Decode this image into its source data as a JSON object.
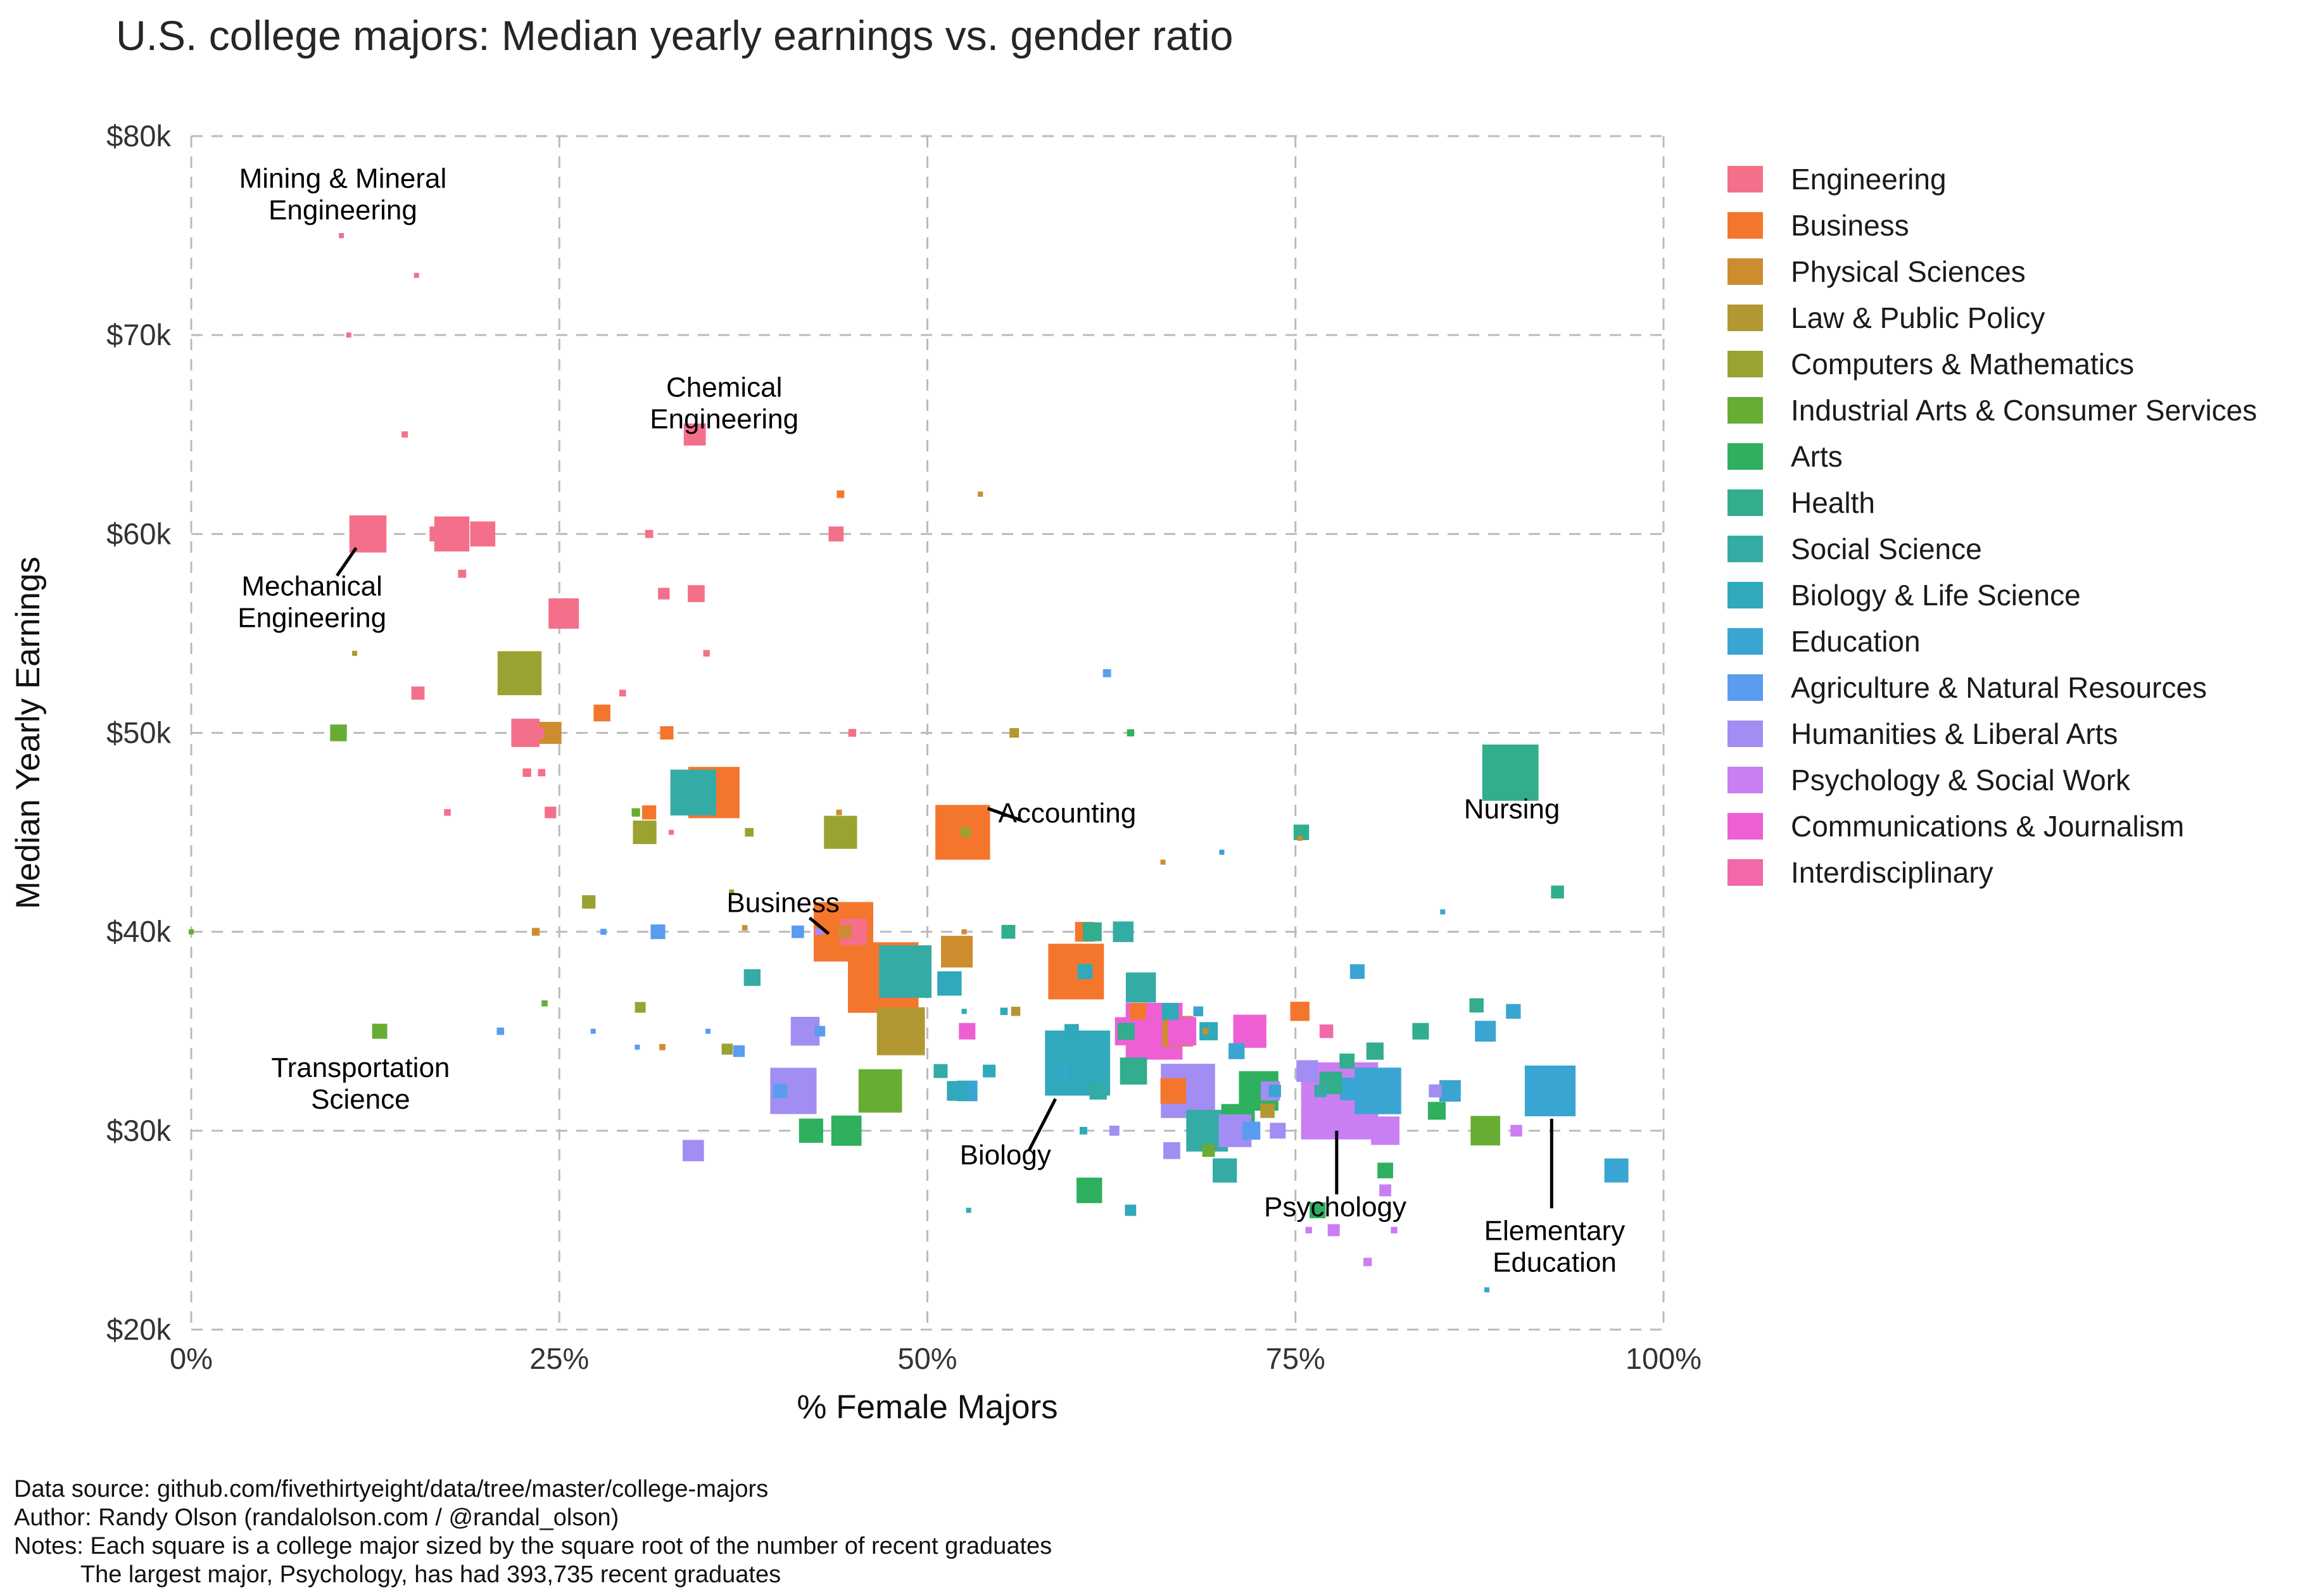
{
  "title": "U.S. college majors: Median yearly earnings vs. gender ratio",
  "axes": {
    "x_label": "% Female Majors",
    "y_label": "Median Yearly Earnings",
    "x_ticks": [
      {
        "v": 0,
        "label": "0%"
      },
      {
        "v": 25,
        "label": "25%"
      },
      {
        "v": 50,
        "label": "50%"
      },
      {
        "v": 75,
        "label": "75%"
      },
      {
        "v": 100,
        "label": "100%"
      }
    ],
    "y_ticks": [
      {
        "v": 20,
        "label": "$20k"
      },
      {
        "v": 30,
        "label": "$30k"
      },
      {
        "v": 40,
        "label": "$40k"
      },
      {
        "v": 50,
        "label": "$50k"
      },
      {
        "v": 60,
        "label": "$60k"
      },
      {
        "v": 70,
        "label": "$70k"
      },
      {
        "v": 80,
        "label": "$80k"
      }
    ],
    "x_range": [
      0,
      100
    ],
    "y_range": [
      20,
      80
    ],
    "grid": "dashed"
  },
  "legend": {
    "position": "right",
    "items": [
      {
        "label": "Engineering",
        "color": "#f4708a"
      },
      {
        "label": "Business",
        "color": "#f4762d"
      },
      {
        "label": "Physical Sciences",
        "color": "#cd8d2f"
      },
      {
        "label": "Law & Public Policy",
        "color": "#b29733"
      },
      {
        "label": "Computers & Mathematics",
        "color": "#9aa231"
      },
      {
        "label": "Industrial Arts & Consumer Services",
        "color": "#68ad33"
      },
      {
        "label": "Arts",
        "color": "#2eb05e"
      },
      {
        "label": "Health",
        "color": "#32ad8d"
      },
      {
        "label": "Social Science",
        "color": "#35aba6"
      },
      {
        "label": "Biology & Life Science",
        "color": "#2fa9bb"
      },
      {
        "label": "Education",
        "color": "#3aa5d2"
      },
      {
        "label": "Agriculture & Natural Resources",
        "color": "#5a9cf0"
      },
      {
        "label": "Humanities & Liberal Arts",
        "color": "#a28df2"
      },
      {
        "label": "Psychology & Social Work",
        "color": "#c97ef2"
      },
      {
        "label": "Communications & Journalism",
        "color": "#ee5fd4"
      },
      {
        "label": "Interdisciplinary",
        "color": "#f268a9"
      }
    ]
  },
  "chart_data": {
    "type": "scatter",
    "marker": "square",
    "size_rule": "square side proportional to sqrt(number of recent graduates); largest major Psychology = 393,735 graduates",
    "title": "U.S. college majors: Median yearly earnings vs. gender ratio",
    "xlabel": "% Female Majors",
    "ylabel": "Median Yearly Earnings",
    "xlim": [
      0,
      100
    ],
    "ylim": [
      20000,
      80000
    ],
    "categories": [
      "Engineering",
      "Business",
      "Physical Sciences",
      "Law & Public Policy",
      "Computers & Mathematics",
      "Industrial Arts & Consumer Services",
      "Arts",
      "Health",
      "Social Science",
      "Biology & Life Science",
      "Education",
      "Agriculture & Natural Resources",
      "Humanities & Liberal Arts",
      "Psychology & Social Work",
      "Communications & Journalism",
      "Interdisciplinary"
    ],
    "point_format": [
      "category_index",
      "pct_female",
      "median_earnings_k",
      "approx_graduates"
    ],
    "points": [
      [
        0,
        10.2,
        75,
        756
      ],
      [
        0,
        15.3,
        73,
        856
      ],
      [
        0,
        10.7,
        70,
        1258
      ],
      [
        0,
        34.2,
        65,
        32260
      ],
      [
        0,
        14.5,
        65,
        2573
      ],
      [
        0,
        12,
        60,
        91227
      ],
      [
        0,
        17.7,
        60,
        81527
      ],
      [
        0,
        19.8,
        60,
        41542
      ],
      [
        0,
        16.7,
        60,
        15058
      ],
      [
        0,
        43.8,
        60,
        14955
      ],
      [
        0,
        31.1,
        60,
        4279
      ],
      [
        0,
        18.4,
        58,
        4321
      ],
      [
        0,
        32.1,
        57,
        8925
      ],
      [
        0,
        34.3,
        57,
        18968
      ],
      [
        0,
        25.3,
        56,
        61152
      ],
      [
        0,
        35,
        54,
        2825
      ],
      [
        0,
        15.4,
        52,
        11565
      ],
      [
        0,
        29.3,
        52,
        2993
      ],
      [
        0,
        22.7,
        50,
        53153
      ],
      [
        0,
        23.6,
        50,
        8316
      ],
      [
        0,
        44.9,
        50,
        4047
      ],
      [
        0,
        23.8,
        48,
        3600
      ],
      [
        0,
        22.8,
        48,
        4790
      ],
      [
        0,
        17.4,
        46,
        2906
      ],
      [
        0,
        24.4,
        46,
        8804
      ],
      [
        0,
        32.6,
        45,
        720
      ],
      [
        0,
        45,
        40,
        46420
      ],
      [
        1,
        44.1,
        62,
        3777
      ],
      [
        1,
        27.9,
        51,
        18713
      ],
      [
        1,
        32.3,
        50,
        11732
      ],
      [
        1,
        35.5,
        47,
        174506
      ],
      [
        1,
        31.1,
        46,
        13302
      ],
      [
        1,
        52.4,
        45,
        198633
      ],
      [
        1,
        44.3,
        40,
        234590
      ],
      [
        1,
        60.7,
        40,
        25894
      ],
      [
        1,
        60.1,
        38,
        205211
      ],
      [
        1,
        47,
        37.7,
        329927
      ],
      [
        1,
        64.3,
        36,
        17947
      ],
      [
        1,
        75.3,
        36,
        24497
      ],
      [
        1,
        66.7,
        32,
        43647
      ],
      [
        2,
        53.6,
        62,
        1792
      ],
      [
        2,
        24.4,
        50,
        32142
      ],
      [
        2,
        44,
        46,
        2116
      ],
      [
        2,
        37.6,
        40.2,
        1978
      ],
      [
        2,
        23.4,
        40,
        4043
      ],
      [
        2,
        44.4,
        40,
        10972
      ],
      [
        2,
        52.5,
        40,
        1436
      ],
      [
        2,
        52,
        39,
        66530
      ],
      [
        2,
        67,
        35,
        62052
      ],
      [
        2,
        68.9,
        35,
        2418
      ],
      [
        2,
        75.3,
        44.7,
        900
      ],
      [
        2,
        66,
        43.5,
        900
      ],
      [
        2,
        32,
        34.2,
        2500
      ],
      [
        3,
        11.1,
        54,
        1148
      ],
      [
        3,
        55.9,
        50,
        5978
      ],
      [
        3,
        48.2,
        35,
        152824
      ],
      [
        3,
        56,
        36,
        5629
      ],
      [
        3,
        73.1,
        31,
        13528
      ],
      [
        4,
        22.3,
        53,
        128319
      ],
      [
        4,
        37.9,
        45,
        4939
      ],
      [
        4,
        44.1,
        45,
        72397
      ],
      [
        4,
        30.8,
        45,
        36698
      ],
      [
        4,
        52.6,
        45,
        6251
      ],
      [
        4,
        36.7,
        42,
        609
      ],
      [
        4,
        27,
        41.5,
        11913
      ],
      [
        4,
        36.4,
        34.1,
        8066
      ],
      [
        4,
        30.5,
        36.2,
        7613
      ],
      [
        5,
        10,
        50,
        18498
      ],
      [
        5,
        0,
        40,
        124
      ],
      [
        5,
        12.8,
        35,
        15150
      ],
      [
        5,
        30.2,
        46,
        4631
      ],
      [
        5,
        46.8,
        32,
        125074
      ],
      [
        5,
        87.9,
        30,
        58001
      ],
      [
        5,
        69.1,
        29,
        10510
      ],
      [
        5,
        24,
        36.4,
        2435
      ],
      [
        6,
        63.8,
        50,
        3340
      ],
      [
        6,
        72.5,
        32,
        103480
      ],
      [
        6,
        42.1,
        30,
        38761
      ],
      [
        6,
        44.5,
        30,
        60633
      ],
      [
        6,
        71.1,
        30.5,
        74440
      ],
      [
        6,
        61,
        27,
        43249
      ],
      [
        6,
        84.6,
        31,
        21030
      ],
      [
        6,
        76.5,
        26,
        16977
      ],
      [
        6,
        81.1,
        28,
        16250
      ],
      [
        7,
        89.6,
        48,
        209394
      ],
      [
        7,
        75.4,
        45,
        15914
      ],
      [
        7,
        92.8,
        42,
        11123
      ],
      [
        7,
        61.2,
        40,
        23551
      ],
      [
        7,
        55.5,
        40,
        12740
      ],
      [
        7,
        64,
        33,
        48491
      ],
      [
        7,
        80.4,
        34,
        19735
      ],
      [
        7,
        63.5,
        35,
        18909
      ],
      [
        7,
        77.4,
        32.4,
        33599
      ],
      [
        7,
        83.5,
        35,
        18109
      ],
      [
        7,
        87.3,
        36.3,
        13386
      ],
      [
        7,
        96.8,
        28,
        38279
      ],
      [
        7,
        78.5,
        33.5,
        15000
      ],
      [
        8,
        34.1,
        47,
        139247
      ],
      [
        8,
        48.5,
        38,
        182621
      ],
      [
        8,
        63.3,
        40,
        28187
      ],
      [
        8,
        50.9,
        33,
        12920
      ],
      [
        8,
        69,
        30,
        115433
      ],
      [
        8,
        70.2,
        28,
        38844
      ],
      [
        8,
        61.6,
        32,
        19879
      ],
      [
        8,
        38.1,
        37.7,
        18480
      ],
      [
        8,
        76.7,
        32,
        9916
      ],
      [
        8,
        64.5,
        37.2,
        60000
      ],
      [
        9,
        60.2,
        33.4,
        280709
      ],
      [
        9,
        51.5,
        37.4,
        39107
      ],
      [
        9,
        66.5,
        36,
        18300
      ],
      [
        9,
        69.1,
        35,
        22060
      ],
      [
        9,
        60.7,
        38,
        15232
      ],
      [
        9,
        55.2,
        36,
        3635
      ],
      [
        9,
        63.8,
        26,
        8409
      ],
      [
        9,
        59.8,
        35,
        13663
      ],
      [
        9,
        59.9,
        33,
        9154
      ],
      [
        9,
        52.8,
        26,
        1329
      ],
      [
        9,
        52,
        32,
        25965
      ],
      [
        9,
        54.2,
        33,
        10706
      ],
      [
        9,
        60.6,
        30,
        3831
      ],
      [
        9,
        52.5,
        36,
        1762
      ],
      [
        10,
        92.3,
        32,
        170862
      ],
      [
        10,
        80.6,
        32,
        143718
      ],
      [
        10,
        87.9,
        35,
        28739
      ],
      [
        10,
        96.8,
        28,
        37589
      ],
      [
        10,
        79.2,
        38,
        14237
      ],
      [
        10,
        71,
        34,
        17125
      ],
      [
        10,
        52.7,
        32,
        28213
      ],
      [
        10,
        68.4,
        36,
        6483
      ],
      [
        10,
        59.7,
        33,
        12561
      ],
      [
        10,
        89.8,
        36,
        14443
      ],
      [
        10,
        85.5,
        32,
        30471
      ],
      [
        10,
        78.8,
        32.1,
        34181
      ],
      [
        10,
        73.6,
        32,
        10150
      ],
      [
        10,
        88,
        22,
        1098
      ],
      [
        10,
        85,
        41,
        818
      ],
      [
        10,
        70,
        44,
        1200
      ],
      [
        11,
        41.2,
        40,
        10399
      ],
      [
        11,
        31.7,
        40,
        14240
      ],
      [
        11,
        28,
        40,
        2439
      ],
      [
        11,
        72,
        30,
        21573
      ],
      [
        11,
        62.2,
        53,
        4361
      ],
      [
        11,
        42.7,
        35,
        7416
      ],
      [
        11,
        21,
        35,
        3607
      ],
      [
        11,
        40,
        32,
        13773
      ],
      [
        11,
        27.3,
        35,
        1488
      ],
      [
        11,
        30.3,
        34.2,
        900
      ],
      [
        11,
        37.2,
        34,
        9000
      ],
      [
        11,
        35.1,
        35,
        685
      ],
      [
        12,
        67.7,
        32,
        194673
      ],
      [
        12,
        40.9,
        32,
        141951
      ],
      [
        12,
        41.7,
        35,
        54814
      ],
      [
        12,
        34.1,
        29,
        30207
      ],
      [
        12,
        70.9,
        30,
        71369
      ],
      [
        12,
        73.3,
        32,
        24650
      ],
      [
        12,
        84.5,
        32,
        11204
      ],
      [
        12,
        73.8,
        30,
        16601
      ],
      [
        12,
        75.8,
        33,
        31195
      ],
      [
        12,
        62.7,
        30,
        6652
      ],
      [
        12,
        66.6,
        29,
        18953
      ],
      [
        12,
        42.7,
        40,
        3000
      ],
      [
        13,
        78,
        31.5,
        393735
      ],
      [
        13,
        81.1,
        30,
        53552
      ],
      [
        13,
        81.1,
        27,
        9374
      ],
      [
        13,
        75.9,
        25,
        2838
      ],
      [
        13,
        81.7,
        25,
        2854
      ],
      [
        13,
        79.9,
        23.4,
        4626
      ],
      [
        13,
        77.6,
        25,
        9628
      ],
      [
        13,
        90,
        30,
        9000
      ],
      [
        13,
        42.6,
        40,
        3014
      ],
      [
        14,
        65.4,
        35,
        213996
      ],
      [
        14,
        71.9,
        35,
        72619
      ],
      [
        14,
        67.3,
        35,
        53162
      ],
      [
        14,
        63.7,
        35,
        52824
      ],
      [
        14,
        52.7,
        35,
        18035
      ],
      [
        15,
        77.1,
        35,
        12296
      ]
    ],
    "annotations": [
      {
        "id": "mining",
        "lines": [
          "Mining & Mineral",
          "Engineering"
        ],
        "tx": 10.3,
        "ty": 77.4
      },
      {
        "id": "chemical",
        "lines": [
          "Chemical",
          "Engineering"
        ],
        "tx": 36.2,
        "ty": 66.9
      },
      {
        "id": "mechanical",
        "lines": [
          "Mechanical",
          "Engineering"
        ],
        "tx": 8.2,
        "ty": 56.9,
        "leader": [
          [
            9.9,
            57.9
          ],
          [
            11.2,
            59.3
          ]
        ]
      },
      {
        "id": "accounting",
        "lines": [
          "Accounting"
        ],
        "tx": 59.5,
        "ty": 45.5,
        "leader": [
          [
            56.4,
            45.6
          ],
          [
            54.1,
            46.2
          ]
        ]
      },
      {
        "id": "business",
        "lines": [
          "Business"
        ],
        "tx": 40.2,
        "ty": 41.0,
        "leader": [
          [
            42.0,
            40.7
          ],
          [
            43.3,
            39.9
          ]
        ]
      },
      {
        "id": "nursing",
        "lines": [
          "Nursing"
        ],
        "tx": 89.7,
        "ty": 45.7
      },
      {
        "id": "transportation",
        "lines": [
          "Transportation",
          "Science"
        ],
        "tx": 11.5,
        "ty": 32.7
      },
      {
        "id": "biology",
        "lines": [
          "Biology"
        ],
        "tx": 55.3,
        "ty": 28.3,
        "leader": [
          [
            56.9,
            29.0
          ],
          [
            58.7,
            31.6
          ]
        ]
      },
      {
        "id": "psychology",
        "lines": [
          "Psychology"
        ],
        "tx": 77.7,
        "ty": 25.7,
        "leader": [
          [
            77.8,
            26.8
          ],
          [
            77.8,
            30.0
          ]
        ]
      },
      {
        "id": "elementary",
        "lines": [
          "Elementary",
          "Education"
        ],
        "tx": 92.6,
        "ty": 24.5,
        "leader": [
          [
            92.4,
            26.1
          ],
          [
            92.4,
            30.6
          ]
        ]
      }
    ],
    "legend_entries": [
      "Engineering",
      "Business",
      "Physical Sciences",
      "Law & Public Policy",
      "Computers & Mathematics",
      "Industrial Arts & Consumer Services",
      "Arts",
      "Health",
      "Social Science",
      "Biology & Life Science",
      "Education",
      "Agriculture & Natural Resources",
      "Humanities & Liberal Arts",
      "Psychology & Social Work",
      "Communications & Journalism",
      "Interdisciplinary"
    ]
  },
  "footer": {
    "lines": [
      "Data source: github.com/fivethirtyeight/data/tree/master/college-majors",
      "Author: Randy Olson (randalolson.com / @randal_olson)",
      "Notes: Each square is a college major sized by the square root of the number of recent graduates",
      "          The largest major, Psychology, has had 393,735 recent graduates"
    ]
  },
  "style": {
    "grid_color": "#bbbbbb",
    "background": "#ffffff",
    "text_color": "#1a1a1a"
  }
}
